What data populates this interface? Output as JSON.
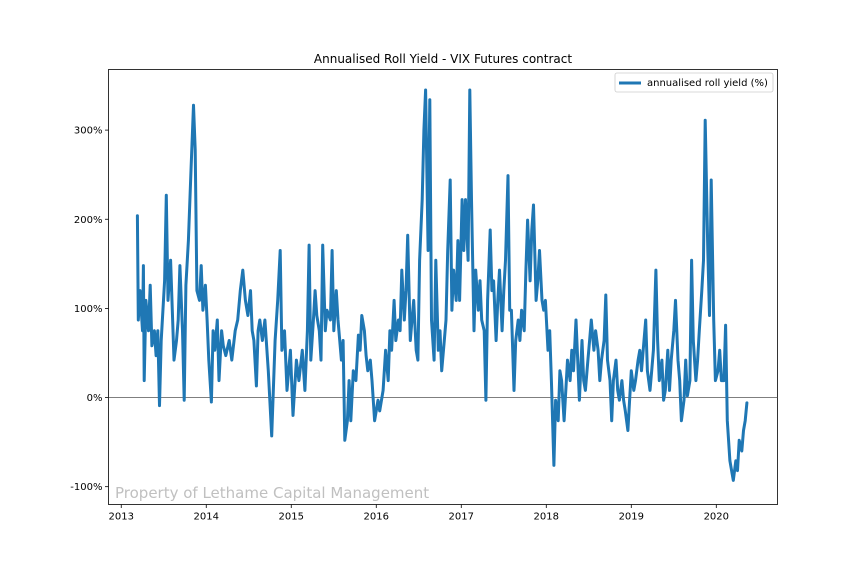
{
  "chart_data": {
    "type": "line",
    "title": "Annualised Roll Yield - VIX Futures contract",
    "xlabel": "",
    "ylabel": "",
    "xlim": [
      2012.85,
      2020.72
    ],
    "ylim": [
      -120,
      368
    ],
    "x_ticks": [
      2013,
      2014,
      2015,
      2016,
      2017,
      2018,
      2019,
      2020
    ],
    "x_tick_labels": [
      "2013",
      "2014",
      "2015",
      "2016",
      "2017",
      "2018",
      "2019",
      "2020"
    ],
    "y_ticks": [
      -100,
      0,
      100,
      200,
      300
    ],
    "y_tick_labels": [
      "-100%",
      "0%",
      "100%",
      "200%",
      "300%"
    ],
    "grid": false,
    "reference_line": 0,
    "legend": {
      "placement": "top-right",
      "entries": [
        "annualised roll yield (%)"
      ]
    },
    "watermark": "Property of Lethame Capital Management",
    "colors": {
      "series": "#1f77b4",
      "reference_line": "#555555",
      "watermark": "#c0c0c0"
    },
    "series": [
      {
        "name": "annualised roll yield (%)",
        "x": [
          2013.19,
          2013.2,
          2013.22,
          2013.25,
          2013.26,
          2013.27,
          2013.29,
          2013.32,
          2013.34,
          2013.36,
          2013.39,
          2013.41,
          2013.43,
          2013.45,
          2013.47,
          2013.51,
          2013.53,
          2013.55,
          2013.58,
          2013.6,
          2013.62,
          2013.65,
          2013.67,
          2013.69,
          2013.72,
          2013.74,
          2013.76,
          2013.79,
          2013.82,
          2013.85,
          2013.87,
          2013.89,
          2013.92,
          2013.94,
          2013.96,
          2013.99,
          2014.01,
          2014.03,
          2014.06,
          2014.08,
          2014.1,
          2014.13,
          2014.15,
          2014.18,
          2014.2,
          2014.23,
          2014.27,
          2014.3,
          2014.34,
          2014.37,
          2014.4,
          2014.43,
          2014.46,
          2014.49,
          2014.52,
          2014.54,
          2014.56,
          2014.59,
          2014.61,
          2014.63,
          2014.66,
          2014.69,
          2014.73,
          2014.77,
          2014.81,
          2014.84,
          2014.87,
          2014.89,
          2014.92,
          2014.95,
          2014.99,
          2015.02,
          2015.06,
          2015.09,
          2015.13,
          2015.16,
          2015.19,
          2015.21,
          2015.23,
          2015.26,
          2015.28,
          2015.3,
          2015.33,
          2015.35,
          2015.37,
          2015.4,
          2015.42,
          2015.46,
          2015.48,
          2015.5,
          2015.53,
          2015.55,
          2015.59,
          2015.61,
          2015.63,
          2015.66,
          2015.68,
          2015.7,
          2015.73,
          2015.76,
          2015.79,
          2015.81,
          2015.83,
          2015.86,
          2015.88,
          2015.9,
          2015.93,
          2015.95,
          2015.98,
          2016.02,
          2016.04,
          2016.08,
          2016.11,
          2016.14,
          2016.16,
          2016.18,
          2016.21,
          2016.23,
          2016.26,
          2016.28,
          2016.3,
          2016.33,
          2016.35,
          2016.37,
          2016.4,
          2016.42,
          2016.44,
          2016.47,
          2016.49,
          2016.51,
          2016.54,
          2016.56,
          2016.58,
          2016.61,
          2016.63,
          2016.65,
          2016.68,
          2016.7,
          2016.73,
          2016.75,
          2016.77,
          2016.8,
          2016.82,
          2016.84,
          2016.87,
          2016.89,
          2016.91,
          2016.94,
          2016.96,
          2016.98,
          2017.01,
          2017.03,
          2017.05,
          2017.08,
          2017.1,
          2017.12,
          2017.15,
          2017.17,
          2017.2,
          2017.22,
          2017.24,
          2017.27,
          2017.29,
          2017.31,
          2017.34,
          2017.36,
          2017.38,
          2017.41,
          2017.43,
          2017.45,
          2017.48,
          2017.5,
          2017.52,
          2017.55,
          2017.57,
          2017.59,
          2017.62,
          2017.64,
          2017.67,
          2017.69,
          2017.71,
          2017.74,
          2017.76,
          2017.78,
          2017.81,
          2017.83,
          2017.85,
          2017.88,
          2017.9,
          2017.92,
          2017.95,
          2017.97,
          2017.99,
          2018.02,
          2018.04,
          2018.06,
          2018.09,
          2018.11,
          2018.14,
          2018.16,
          2018.18,
          2018.21,
          2018.23,
          2018.25,
          2018.28,
          2018.3,
          2018.32,
          2018.35,
          2018.37,
          2018.39,
          2018.42,
          2018.44,
          2018.46,
          2018.49,
          2018.51,
          2018.53,
          2018.56,
          2018.58,
          2018.61,
          2018.63,
          2018.65,
          2018.68,
          2018.7,
          2018.72,
          2018.75,
          2018.77,
          2018.79,
          2018.82,
          2018.84,
          2018.86,
          2018.89,
          2018.91,
          2018.93,
          2018.96,
          2018.98,
          2019.0,
          2019.03,
          2019.05,
          2019.08,
          2019.1,
          2019.12,
          2019.15,
          2019.17,
          2019.19,
          2019.22,
          2019.24,
          2019.26,
          2019.29,
          2019.31,
          2019.33,
          2019.36,
          2019.38,
          2019.4,
          2019.43,
          2019.45,
          2019.47,
          2019.5,
          2019.52,
          2019.55,
          2019.57,
          2019.59,
          2019.62,
          2019.64,
          2019.66,
          2019.69,
          2019.71,
          2019.73,
          2019.76,
          2019.78,
          2019.8,
          2019.83,
          2019.85,
          2019.87,
          2019.9,
          2019.92,
          2019.94,
          2019.97,
          2019.99,
          2020.02,
          2020.04,
          2020.06,
          2020.09,
          2020.11,
          2020.13,
          2020.16,
          2020.18,
          2020.2,
          2020.23,
          2020.25,
          2020.27,
          2020.3,
          2020.32,
          2020.34,
          2020.36
        ],
        "y": [
          204,
          87,
          120,
          75,
          148,
          19,
          109,
          75,
          126,
          58,
          75,
          47,
          75,
          -9,
          64,
          131,
          227,
          109,
          154,
          98,
          42,
          64,
          87,
          148,
          75,
          -3,
          126,
          176,
          255,
          328,
          278,
          120,
          109,
          148,
          98,
          126,
          87,
          42,
          -5,
          75,
          53,
          87,
          19,
          75,
          58,
          47,
          64,
          42,
          75,
          87,
          120,
          143,
          109,
          92,
          120,
          75,
          64,
          13,
          75,
          87,
          64,
          87,
          30,
          -43,
          64,
          109,
          165,
          53,
          75,
          8,
          53,
          -20,
          42,
          19,
          53,
          8,
          75,
          171,
          42,
          87,
          120,
          92,
          75,
          42,
          171,
          75,
          98,
          87,
          165,
          75,
          120,
          87,
          42,
          64,
          -48,
          -26,
          19,
          -26,
          30,
          19,
          70,
          53,
          92,
          75,
          47,
          30,
          42,
          19,
          -26,
          -3,
          -15,
          8,
          53,
          19,
          75,
          53,
          109,
          64,
          87,
          75,
          143,
          87,
          120,
          182,
          64,
          87,
          109,
          53,
          42,
          154,
          222,
          300,
          345,
          165,
          334,
          87,
          42,
          154,
          53,
          75,
          30,
          64,
          87,
          165,
          244,
          98,
          143,
          109,
          176,
          109,
          222,
          165,
          222,
          154,
          345,
          222,
          75,
          143,
          98,
          131,
          87,
          75,
          -3,
          109,
          188,
          120,
          131,
          64,
          109,
          143,
          75,
          120,
          154,
          249,
          98,
          98,
          8,
          64,
          87,
          64,
          98,
          75,
          143,
          199,
          131,
          188,
          216,
          109,
          131,
          165,
          109,
          98,
          109,
          53,
          75,
          19,
          -76,
          -3,
          -26,
          30,
          19,
          -26,
          8,
          42,
          19,
          53,
          30,
          87,
          42,
          -3,
          64,
          19,
          8,
          42,
          64,
          87,
          53,
          75,
          53,
          19,
          42,
          64,
          115,
          42,
          19,
          -26,
          19,
          42,
          8,
          -3,
          19,
          -3,
          -15,
          -37,
          -3,
          30,
          8,
          19,
          42,
          53,
          30,
          64,
          87,
          30,
          8,
          30,
          53,
          143,
          64,
          19,
          42,
          -3,
          8,
          53,
          8,
          42,
          75,
          109,
          42,
          19,
          -26,
          -3,
          42,
          2,
          19,
          154,
          64,
          19,
          42,
          75,
          120,
          154,
          311,
          165,
          92,
          244,
          87,
          19,
          30,
          53,
          19,
          19,
          81,
          -26,
          -71,
          -82,
          -93,
          -71,
          -82,
          -48,
          -60,
          -37,
          -26,
          -6
        ]
      }
    ]
  }
}
